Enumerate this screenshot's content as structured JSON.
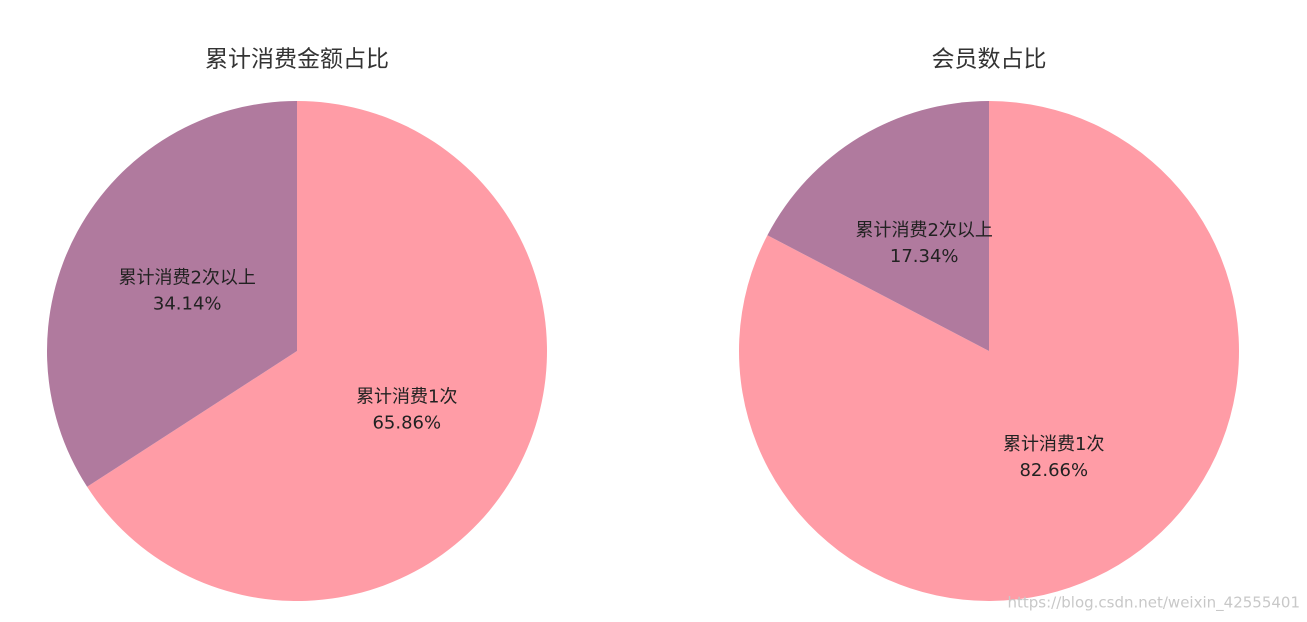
{
  "chart_data": [
    {
      "type": "pie",
      "title": "累计消费金额占比",
      "categories": [
        "累计消费1次",
        "累计消费2次以上"
      ],
      "values": [
        65.86,
        34.14
      ],
      "value_labels": [
        "65.86%",
        "34.14%"
      ],
      "colors": [
        "#ff9ca6",
        "#b07a9e"
      ]
    },
    {
      "type": "pie",
      "title": "会员数占比",
      "categories": [
        "累计消费1次",
        "累计消费2次以上"
      ],
      "values": [
        82.66,
        17.34
      ],
      "value_labels": [
        "82.66%",
        "17.34%"
      ],
      "colors": [
        "#ff9ca6",
        "#b07a9e"
      ]
    }
  ],
  "watermark": "https://blog.csdn.net/weixin_42555401"
}
